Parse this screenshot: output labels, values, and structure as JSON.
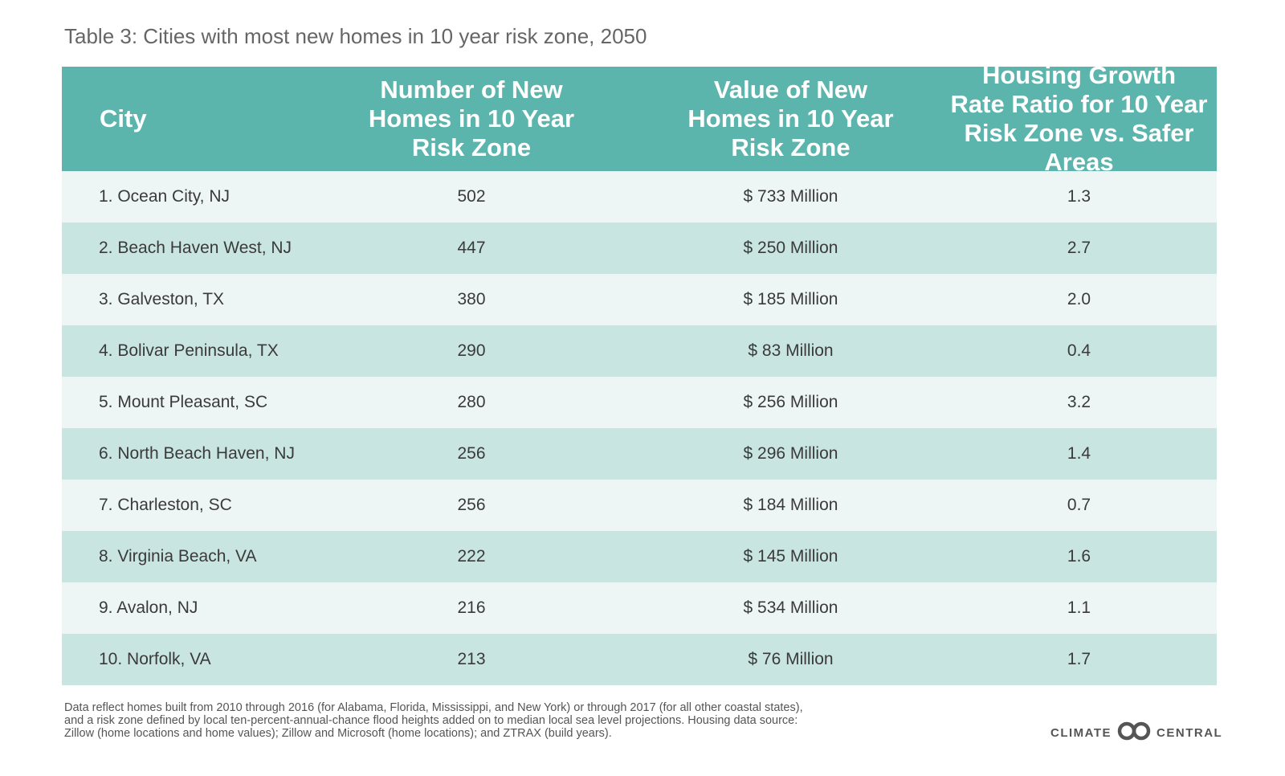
{
  "title": "Table 3: Cities with most new homes in 10 year risk zone, 2050",
  "chart_data": {
    "type": "table",
    "title": "Table 3: Cities with most new homes in 10 year risk zone, 2050",
    "columns": [
      "City",
      "Number of New Homes in 10 Year Risk Zone",
      "Value of New Homes in 10 Year Risk Zone",
      "Housing Growth Rate Ratio for 10 Year Risk Zone vs. Safer Areas"
    ],
    "header_lines": [
      "City",
      "Number of New\nHomes in 10 Year\nRisk Zone",
      "Value of New\nHomes in 10 Year\nRisk Zone",
      "Housing Growth\nRate Ratio for 10 Year\nRisk Zone vs. Safer Areas"
    ],
    "rows": [
      {
        "city": "1. Ocean City, NJ",
        "homes": "502",
        "value": "$ 733 Million",
        "ratio": "1.3"
      },
      {
        "city": "2. Beach Haven West, NJ",
        "homes": "447",
        "value": "$ 250 Million",
        "ratio": "2.7"
      },
      {
        "city": "3. Galveston, TX",
        "homes": "380",
        "value": "$ 185 Million",
        "ratio": "2.0"
      },
      {
        "city": "4. Bolivar Peninsula, TX",
        "homes": "290",
        "value": "$ 83 Million",
        "ratio": "0.4"
      },
      {
        "city": "5. Mount Pleasant, SC",
        "homes": "280",
        "value": "$ 256 Million",
        "ratio": "3.2"
      },
      {
        "city": "6. North Beach Haven, NJ",
        "homes": "256",
        "value": "$ 296 Million",
        "ratio": "1.4"
      },
      {
        "city": "7. Charleston, SC",
        "homes": "256",
        "value": "$ 184 Million",
        "ratio": "0.7"
      },
      {
        "city": "8. Virginia Beach, VA",
        "homes": "222",
        "value": "$ 145 Million",
        "ratio": "1.6"
      },
      {
        "city": "9. Avalon, NJ",
        "homes": "216",
        "value": "$ 534 Million",
        "ratio": "1.1"
      },
      {
        "city": "10. Norfolk, VA",
        "homes": "213",
        "value": "$ 76 Million",
        "ratio": "1.7"
      }
    ]
  },
  "footnote": {
    "line1": "Data reflect homes built from 2010 through 2016 (for Alabama, Florida, Mississippi, and New York) or through 2017 (for all other coastal states),",
    "line2": "and a risk zone defined by local ten-percent-annual-chance flood heights added on to median local sea level projections. Housing data source:",
    "line3": "Zillow (home locations and home values); Zillow and Microsoft (home locations); and ZTRAX (build years)."
  },
  "brand": {
    "left": "CLIMATE",
    "right": "CENTRAL",
    "logo_icon": "climate-central-logo-icon"
  },
  "colors": {
    "header": "#5cb5ad",
    "row_light": "#eef6f5",
    "row_dark": "#c8e5e1",
    "text": "#3a3a3a"
  }
}
